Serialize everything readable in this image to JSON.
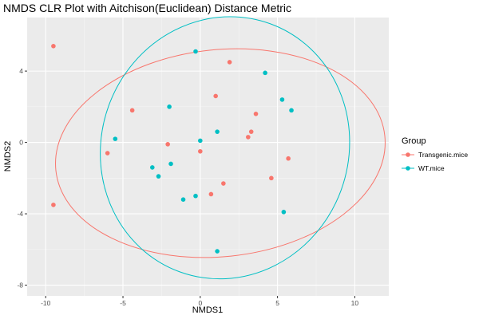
{
  "chart_data": {
    "type": "scatter",
    "title": "NMDS CLR Plot with Aitchison(Euclidean) Distance Metric",
    "xlabel": "NMDS1",
    "ylabel": "NMDS2",
    "xlim": [
      -11.2,
      12.2
    ],
    "ylim": [
      -8.6,
      7.0
    ],
    "xticks": [
      -10,
      -5,
      0,
      5,
      10
    ],
    "xtick_labels": [
      "-10",
      "-5",
      "0",
      "5",
      "10"
    ],
    "yticks": [
      -8,
      -4,
      0,
      4
    ],
    "ytick_labels": [
      "-8",
      "-4",
      "0",
      "4"
    ],
    "grid": true,
    "background": "#ebebeb",
    "legend": {
      "title": "Group",
      "position": "right"
    },
    "series": [
      {
        "name": "Transgenic.mice",
        "color": "#F8766D",
        "points": [
          [
            -9.5,
            5.4
          ],
          [
            1.9,
            4.5
          ],
          [
            1.0,
            2.6
          ],
          [
            -4.4,
            1.8
          ],
          [
            3.6,
            1.6
          ],
          [
            3.3,
            0.6
          ],
          [
            3.1,
            0.3
          ],
          [
            -2.1,
            -0.1
          ],
          [
            0.0,
            -0.5
          ],
          [
            -6.0,
            -0.6
          ],
          [
            5.7,
            -0.9
          ],
          [
            4.6,
            -2.0
          ],
          [
            1.5,
            -2.3
          ],
          [
            0.7,
            -2.9
          ],
          [
            -9.5,
            -3.5
          ]
        ],
        "ellipse": {
          "center": [
            1.3,
            -0.6
          ],
          "rx": 10.7,
          "ry": 5.8,
          "angle_deg": 6
        }
      },
      {
        "name": "WT.mice",
        "color": "#00BFC4",
        "points": [
          [
            -0.3,
            5.1
          ],
          [
            4.2,
            3.9
          ],
          [
            5.3,
            2.4
          ],
          [
            5.9,
            1.8
          ],
          [
            -2.0,
            2.0
          ],
          [
            1.1,
            0.6
          ],
          [
            -5.5,
            0.2
          ],
          [
            0.0,
            0.1
          ],
          [
            -1.9,
            -1.2
          ],
          [
            -3.1,
            -1.4
          ],
          [
            -2.7,
            -1.9
          ],
          [
            -0.3,
            -3.0
          ],
          [
            -1.1,
            -3.2
          ],
          [
            5.4,
            -3.9
          ],
          [
            1.1,
            -6.1
          ]
        ],
        "ellipse": {
          "center": [
            1.6,
            -0.3
          ],
          "rx": 8.0,
          "ry": 7.4,
          "angle_deg": -20
        }
      }
    ]
  }
}
